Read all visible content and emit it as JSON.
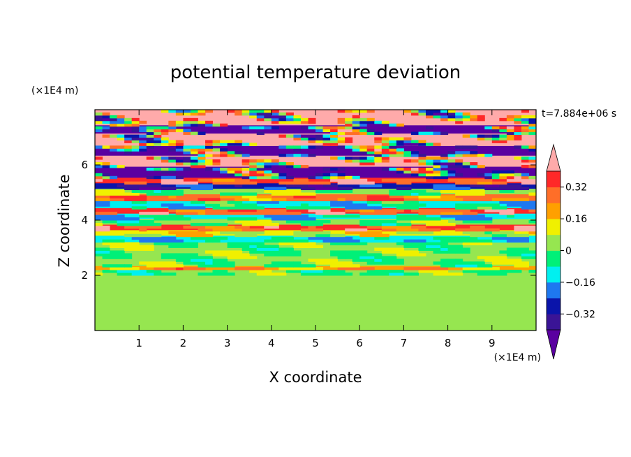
{
  "chart_data": {
    "type": "heatmap",
    "title": "potential temperature deviation",
    "xlabel": "X coordinate",
    "ylabel": "Z coordinate",
    "x_unit": "(×1E4 m)",
    "y_unit": "(×1E4 m)",
    "time_label": "t=7.884e+06 s",
    "xlim": [
      0,
      10
    ],
    "ylim": [
      0,
      8
    ],
    "x_ticks": [
      1,
      2,
      3,
      4,
      5,
      6,
      7,
      8,
      9
    ],
    "y_ticks": [
      2,
      4,
      6
    ],
    "colorbar": {
      "levels": [
        -0.4,
        -0.32,
        -0.24,
        -0.16,
        -0.08,
        0,
        0.08,
        0.16,
        0.24,
        0.32,
        0.4
      ],
      "tick_values": [
        0.32,
        0.16,
        0,
        -0.16,
        -0.32
      ],
      "tick_labels": [
        "0.32",
        "0.16",
        "0",
        "−0.16",
        "−0.32"
      ],
      "colors_low_to_high": [
        "#5a00a0",
        "#3a1496",
        "#0a14aa",
        "#1e78f0",
        "#00f0f0",
        "#00f078",
        "#96e650",
        "#f0f000",
        "#ffa000",
        "#ff6e28",
        "#ff2828",
        "#ffaaaa"
      ],
      "extend": "both"
    },
    "bands": [
      {
        "z": [
          0.0,
          2.0
        ],
        "value": 0.05
      },
      {
        "z": [
          2.0,
          2.2
        ],
        "value": 0.0
      },
      {
        "z": [
          2.2,
          2.35
        ],
        "value": 0.22
      },
      {
        "z": [
          2.35,
          3.2
        ],
        "value": 0.02
      },
      {
        "z": [
          3.2,
          3.45
        ],
        "value": -0.12
      },
      {
        "z": [
          3.45,
          3.65
        ],
        "value": 0.1
      },
      {
        "z": [
          3.65,
          3.85
        ],
        "value": 0.32
      },
      {
        "z": [
          3.85,
          4.05
        ],
        "value": 0.02
      },
      {
        "z": [
          4.05,
          4.25
        ],
        "value": -0.12
      },
      {
        "z": [
          4.25,
          4.45
        ],
        "value": 0.32
      },
      {
        "z": [
          4.45,
          4.7
        ],
        "value": -0.1
      },
      {
        "z": [
          4.7,
          4.95
        ],
        "value": 0.26
      },
      {
        "z": [
          4.95,
          5.15
        ],
        "value": 0.03
      },
      {
        "z": [
          5.15,
          5.35
        ],
        "value": -0.3
      },
      {
        "z": [
          5.35,
          5.55
        ],
        "value": 0.34
      },
      {
        "z": [
          5.55,
          5.95
        ],
        "value": -0.45
      },
      {
        "z": [
          5.95,
          6.35
        ],
        "value": 0.45
      },
      {
        "z": [
          6.35,
          6.7
        ],
        "value": -0.45
      },
      {
        "z": [
          6.7,
          7.15
        ],
        "value": 0.45
      },
      {
        "z": [
          7.15,
          7.45
        ],
        "value": -0.45
      },
      {
        "z": [
          7.45,
          8.0
        ],
        "value": 0.45
      }
    ],
    "grid": false
  }
}
